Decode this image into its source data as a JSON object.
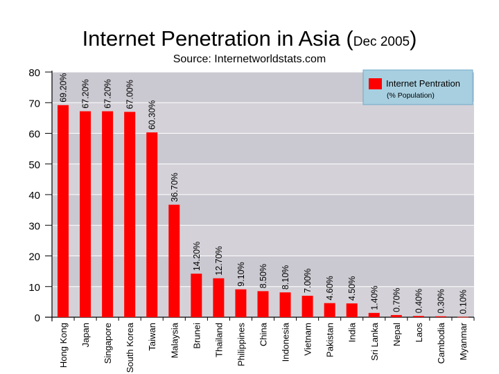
{
  "title": {
    "main": "Internet Penetration in Asia (",
    "date": "Dec 2005",
    "close": ")"
  },
  "subtitle": "Source: Internetworldstats.com",
  "colors": {
    "bar": "#ff0000",
    "plot_bg": "#d4d2d8",
    "plot_bg_alt": "#cac8d0",
    "legend_bg": "#a7cfe0",
    "legend_border": "#6fa8c8"
  },
  "chart_data": {
    "type": "bar",
    "categories": [
      "Hong Kong",
      "Japan",
      "Singapore",
      "South Korea",
      "Taiwan",
      "Malaysia",
      "Brunei",
      "Thailand",
      "Philippines",
      "China",
      "Indonesia",
      "Vietnam",
      "Pakistan",
      "India",
      "Sri Lanka",
      "Nepal",
      "Laos",
      "Cambodia",
      "Myanmar"
    ],
    "series": [
      {
        "name": "Internet Pentration",
        "values": [
          69.2,
          67.2,
          67.2,
          67.0,
          60.3,
          36.7,
          14.2,
          12.7,
          9.1,
          8.5,
          8.1,
          7.0,
          4.6,
          4.5,
          1.4,
          0.7,
          0.4,
          0.3,
          0.1
        ]
      }
    ],
    "data_labels": [
      "69.20%",
      "67.20%",
      "67.20%",
      "67.00%",
      "60.30%",
      "36.70%",
      "14.20%",
      "12.70%",
      "9.10%",
      "8.50%",
      "8.10%",
      "7.00%",
      "4.60%",
      "4.50%",
      "1.40%",
      "0.70%",
      "0.40%",
      "0.30%",
      "0.10%"
    ],
    "y_ticks": [
      0,
      10,
      20,
      30,
      40,
      50,
      60,
      70,
      80
    ],
    "ylim": [
      0,
      80
    ],
    "grid": true,
    "legend": {
      "position": "top-right",
      "label": "Internet Pentration",
      "sublabel": "(% Population)"
    }
  }
}
